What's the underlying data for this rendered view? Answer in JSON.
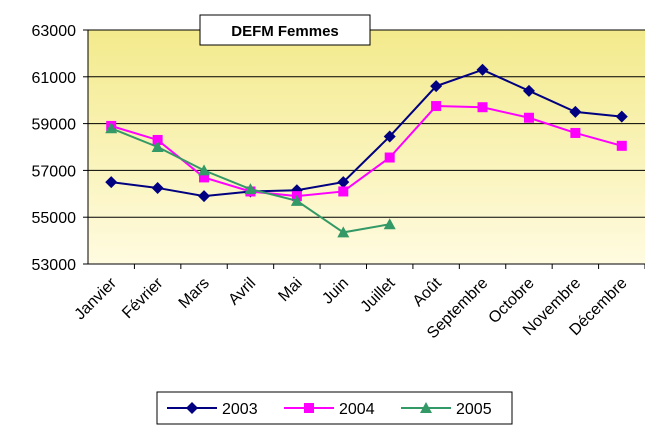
{
  "chart_data": {
    "type": "line",
    "title": "DEFM Femmes",
    "categories": [
      "Janvier",
      "Février",
      "Mars",
      "Avril",
      "Mai",
      "Juin",
      "Juillet",
      "Août",
      "Septembre",
      "Octobre",
      "Novembre",
      "Décembre"
    ],
    "series": [
      {
        "name": "2003",
        "color": "#000080",
        "marker": "diamond",
        "values": [
          56500,
          56250,
          55900,
          56100,
          56150,
          56500,
          58450,
          60600,
          61300,
          60400,
          59500,
          59300
        ]
      },
      {
        "name": "2004",
        "color": "#ff00ff",
        "marker": "square",
        "values": [
          58900,
          58300,
          56700,
          56100,
          55900,
          56100,
          57550,
          59750,
          59700,
          59250,
          58600,
          58050
        ]
      },
      {
        "name": "2005",
        "color": "#339966",
        "marker": "triangle",
        "values": [
          58800,
          58000,
          57000,
          56200,
          55700,
          54350,
          54700,
          null,
          null,
          null,
          null,
          null
        ]
      }
    ],
    "ylim": [
      53000,
      63000
    ],
    "yticks": [
      53000,
      55000,
      57000,
      59000,
      61000,
      63000
    ],
    "grid": true,
    "legend": "bottom"
  }
}
